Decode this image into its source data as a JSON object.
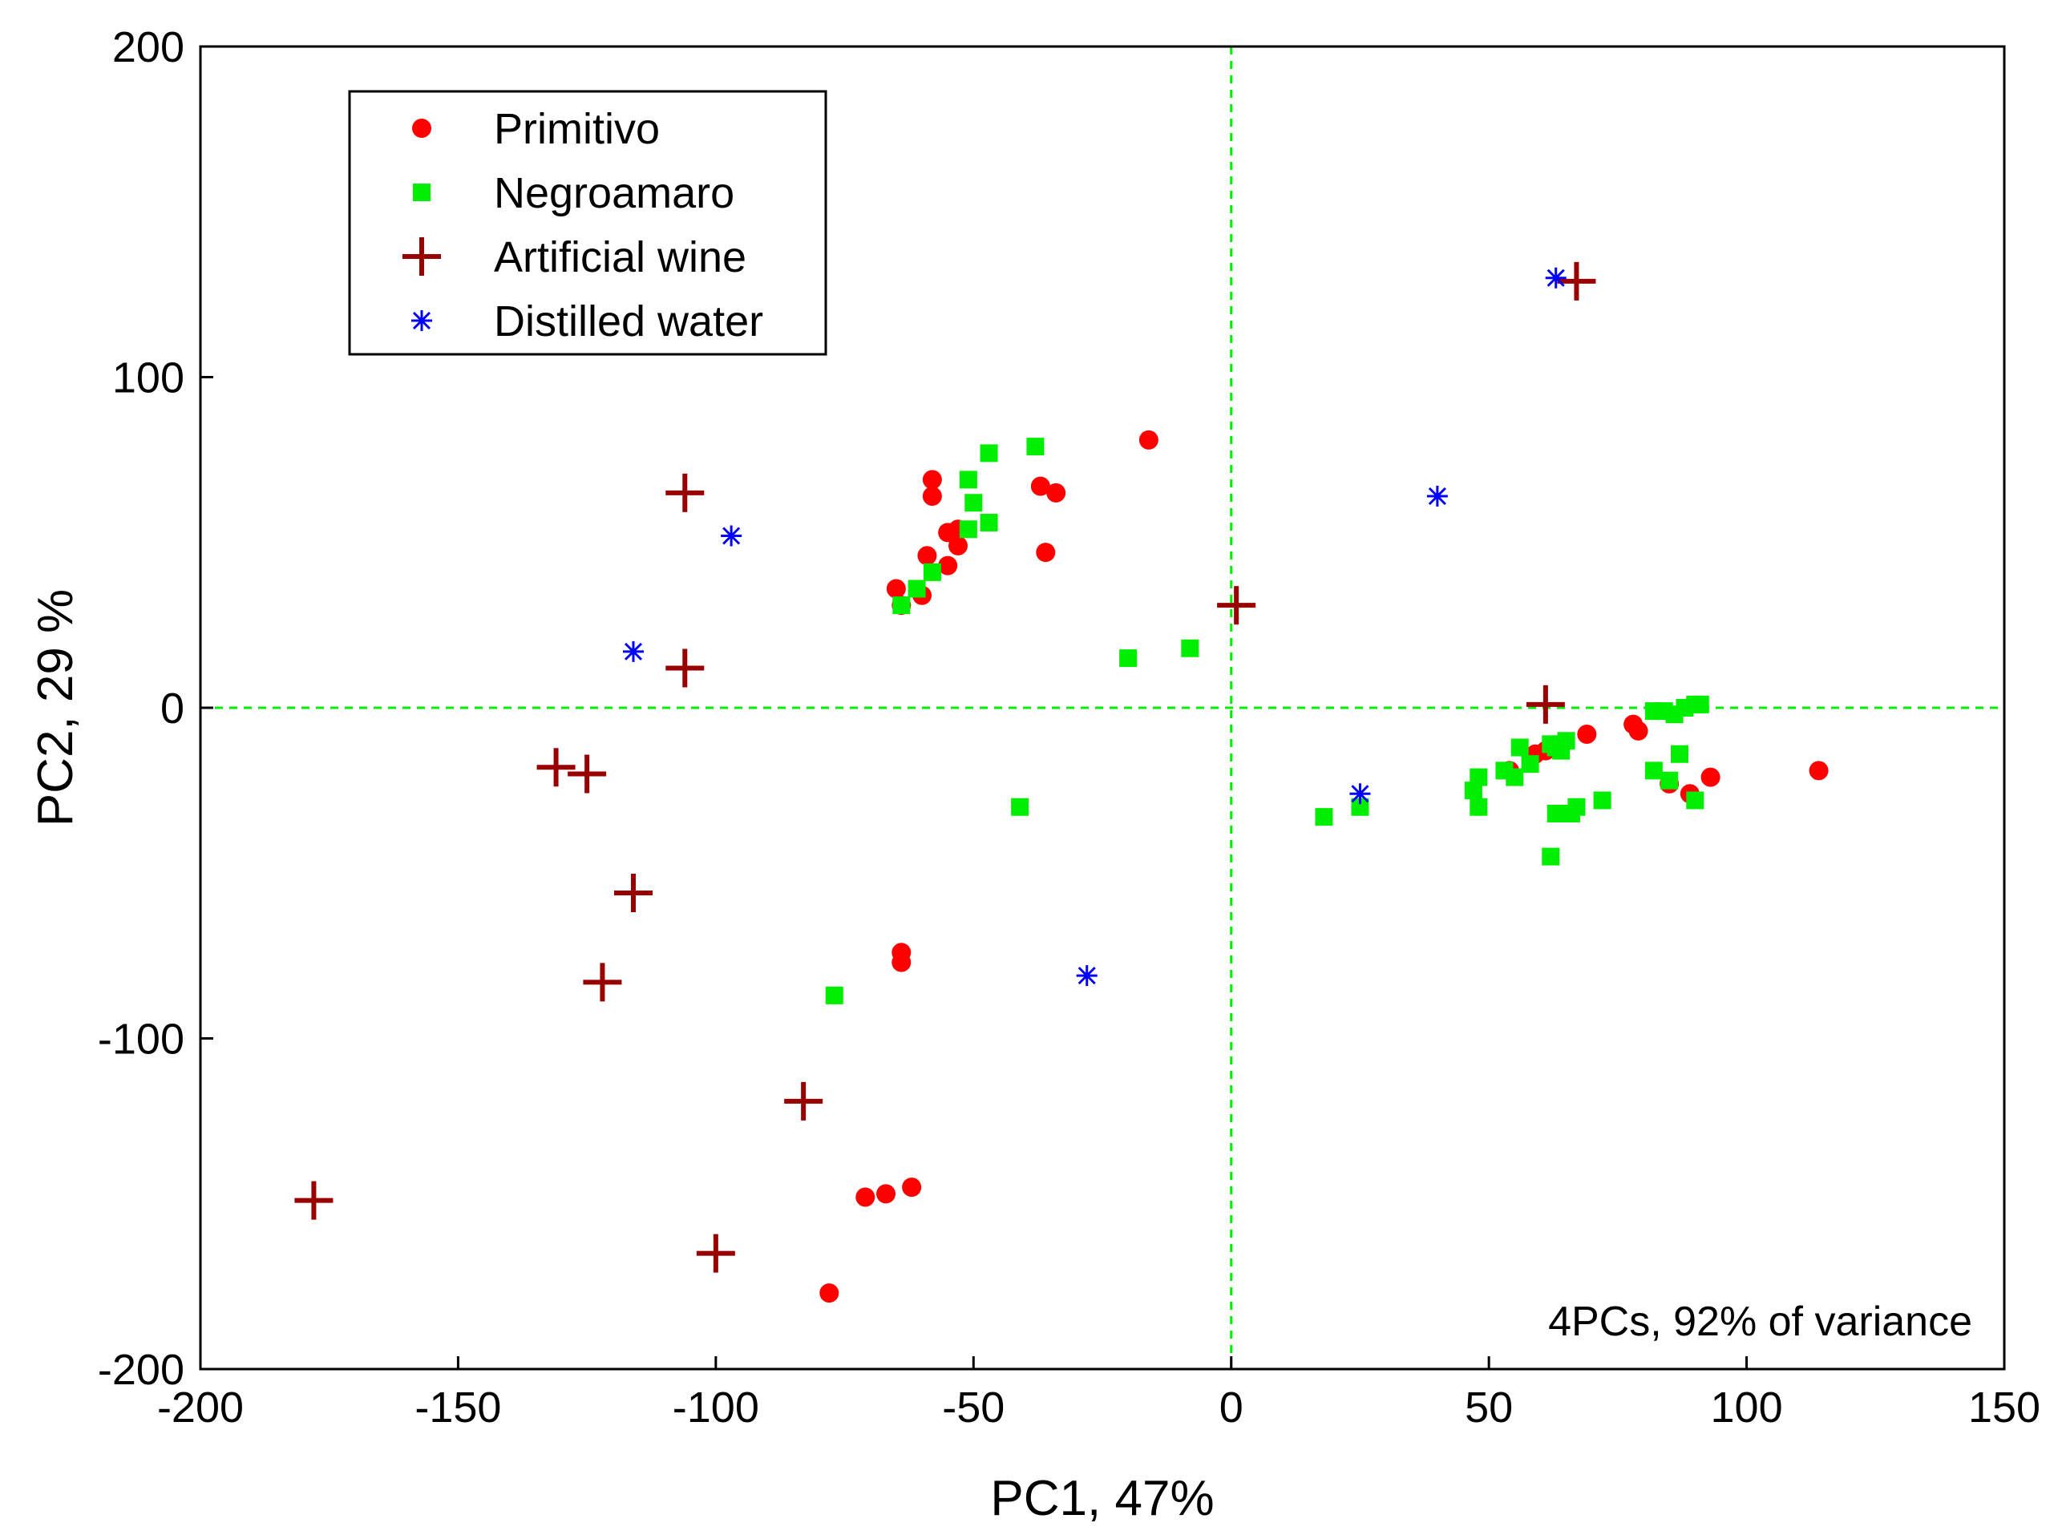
{
  "chart_data": {
    "type": "scatter",
    "xlabel": "PC1, 47%",
    "ylabel": "PC2, 29 %",
    "xlim": [
      -200,
      150
    ],
    "ylim": [
      -200,
      200
    ],
    "xticks": [
      "-200",
      "-150",
      "-100",
      "-50",
      "0",
      "50",
      "100",
      "150"
    ],
    "yticks": [
      "-200",
      "-100",
      "0",
      "100",
      "200"
    ],
    "reference_lines": {
      "x": 0,
      "y": 0,
      "style": "dashed",
      "color": "#00ee00"
    },
    "annotation": "4PCs, 92% of variance",
    "legend_position": "top-left",
    "grid": false,
    "series": [
      {
        "name": "Primitivo",
        "marker": "circle",
        "color": "#ff0000",
        "points": [
          [
            -16,
            81
          ],
          [
            -37,
            67
          ],
          [
            -34,
            65
          ],
          [
            -36,
            47
          ],
          [
            -58,
            69
          ],
          [
            -58,
            64
          ],
          [
            -55,
            53
          ],
          [
            -53,
            54
          ],
          [
            -53,
            49
          ],
          [
            -59,
            46
          ],
          [
            -55,
            43
          ],
          [
            -65,
            36
          ],
          [
            -60,
            34
          ],
          [
            -64,
            31
          ],
          [
            -64,
            -74
          ],
          [
            -64,
            -77
          ],
          [
            -71,
            -148
          ],
          [
            -67,
            -147
          ],
          [
            -62,
            -145
          ],
          [
            -78,
            -177
          ],
          [
            54,
            -19
          ],
          [
            59,
            -14
          ],
          [
            61,
            -13
          ],
          [
            69,
            -8
          ],
          [
            78,
            -5
          ],
          [
            79,
            -7
          ],
          [
            85,
            -23
          ],
          [
            89,
            -26
          ],
          [
            93,
            -21
          ],
          [
            114,
            -19
          ]
        ]
      },
      {
        "name": "Negroamaro",
        "marker": "square",
        "color": "#00ee00",
        "points": [
          [
            -38,
            79
          ],
          [
            -47,
            77
          ],
          [
            -51,
            69
          ],
          [
            -50,
            62
          ],
          [
            -47,
            56
          ],
          [
            -51,
            54
          ],
          [
            -58,
            41
          ],
          [
            -61,
            36
          ],
          [
            -64,
            31
          ],
          [
            -20,
            15
          ],
          [
            -8,
            18
          ],
          [
            -41,
            -30
          ],
          [
            -77,
            -87
          ],
          [
            18,
            -33
          ],
          [
            25,
            -30
          ],
          [
            47,
            -25
          ],
          [
            48,
            -21
          ],
          [
            48,
            -30
          ],
          [
            53,
            -19
          ],
          [
            55,
            -21
          ],
          [
            56,
            -12
          ],
          [
            58,
            -17
          ],
          [
            62,
            -11
          ],
          [
            63,
            -12
          ],
          [
            64,
            -13
          ],
          [
            64,
            -11
          ],
          [
            65,
            -10
          ],
          [
            62,
            -45
          ],
          [
            63,
            -32
          ],
          [
            66,
            -32
          ],
          [
            67,
            -30
          ],
          [
            72,
            -28
          ],
          [
            82,
            -1
          ],
          [
            82,
            -19
          ],
          [
            84,
            -1
          ],
          [
            85,
            -22
          ],
          [
            86,
            -2
          ],
          [
            87,
            -14
          ],
          [
            88,
            0
          ],
          [
            90,
            1
          ],
          [
            91,
            1
          ],
          [
            90,
            -28
          ]
        ]
      },
      {
        "name": "Artificial wine",
        "marker": "plus",
        "color": "#990000",
        "points": [
          [
            67,
            129
          ],
          [
            -106,
            65
          ],
          [
            1,
            31
          ],
          [
            -106,
            12
          ],
          [
            61,
            1
          ],
          [
            -131,
            -18
          ],
          [
            -125,
            -20
          ],
          [
            -116,
            -56
          ],
          [
            -122,
            -83
          ],
          [
            -83,
            -119
          ],
          [
            -178,
            -149
          ],
          [
            -100,
            -165
          ]
        ]
      },
      {
        "name": "Distilled water",
        "marker": "asterisk",
        "color": "#0000ff",
        "points": [
          [
            63,
            130
          ],
          [
            40,
            64
          ],
          [
            -97,
            52
          ],
          [
            -116,
            17
          ],
          [
            25,
            -26
          ],
          [
            -28,
            -81
          ]
        ]
      }
    ]
  }
}
